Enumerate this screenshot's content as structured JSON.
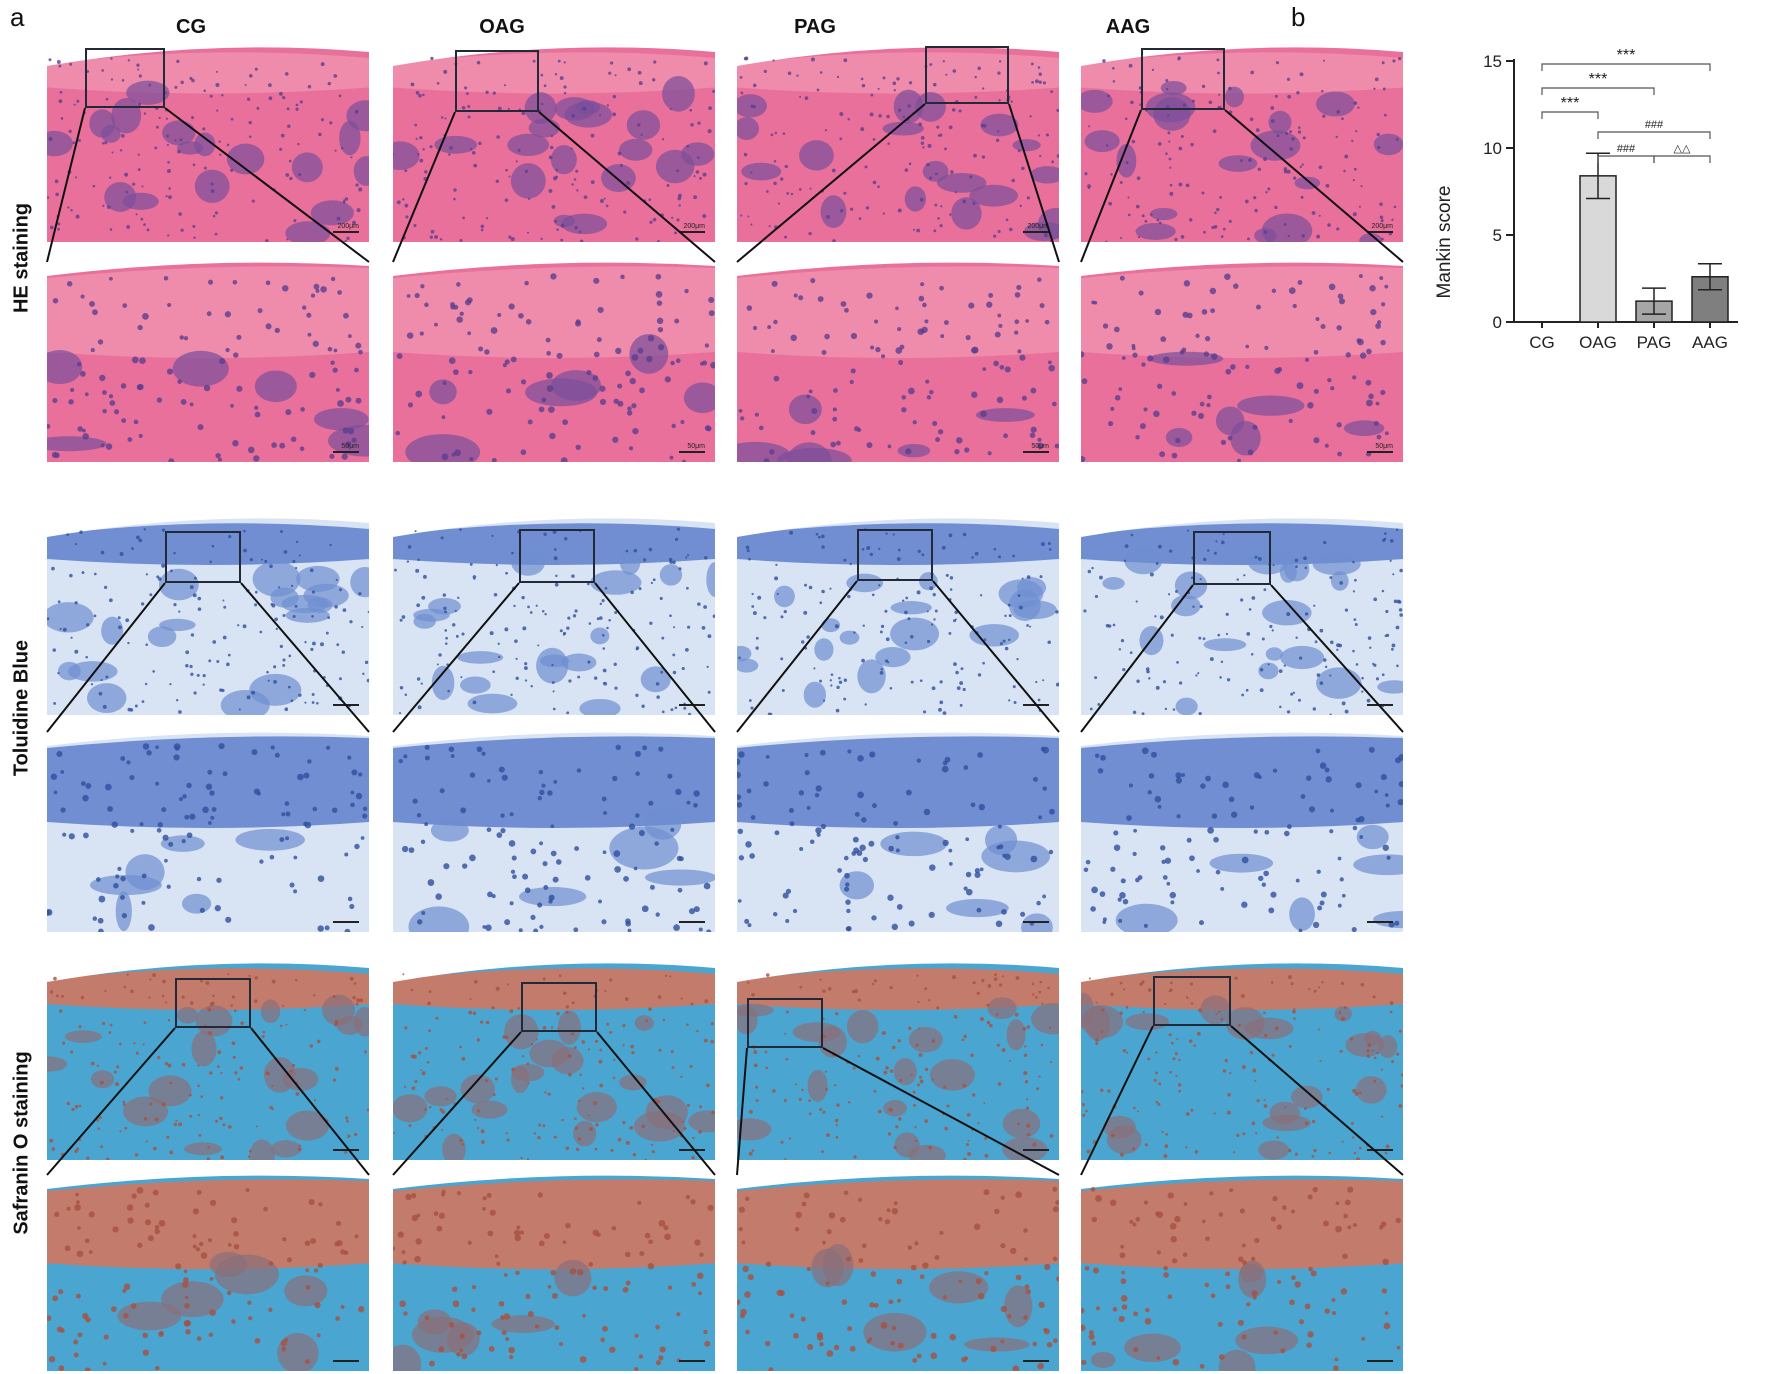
{
  "figure": {
    "panel_a_letter": "a",
    "panel_b_letter": "b",
    "groups": [
      "CG",
      "OAG",
      "PAG",
      "AAG"
    ],
    "rows": [
      {
        "label": "HE staining",
        "stain": "he",
        "scale_low": "200μm",
        "scale_high": "50μm"
      },
      {
        "label": "Toluidine Blue",
        "stain": "tb",
        "scale_low": "",
        "scale_high": ""
      },
      {
        "label": "Safranin O staining",
        "stain": "so",
        "scale_low": "",
        "scale_high": ""
      }
    ],
    "stain_colors": {
      "he": {
        "bg": "#e8709a",
        "top": "#f08fae",
        "cell": "#5b3f8e",
        "marrow": "#7a4f9a"
      },
      "tb": {
        "bg": "#d8e4f4",
        "top": "#5f7fcc",
        "cell": "#2f4f9f",
        "marrow": "#6f8fd0"
      },
      "so": {
        "bg": "#4aa6d0",
        "top": "#d8745a",
        "cell": "#a85040",
        "marrow": "#8a6f7a"
      }
    }
  },
  "chart_data": {
    "type": "bar",
    "categories": [
      "CG",
      "OAG",
      "PAG",
      "AAG"
    ],
    "values": [
      0,
      8.4,
      1.2,
      2.6
    ],
    "errors": [
      0,
      1.3,
      0.75,
      0.75
    ],
    "bar_colors": [
      "#ffffff",
      "#d9d9d9",
      "#a6a6a6",
      "#7f7f7f"
    ],
    "ylabel": "Mankin score",
    "xlabel": "",
    "ylim": [
      0,
      15
    ],
    "yticks": [
      0,
      5,
      10,
      15
    ],
    "significance": [
      {
        "from": 0,
        "to": 3,
        "label": "***",
        "level": 4
      },
      {
        "from": 0,
        "to": 2,
        "label": "***",
        "level": 3
      },
      {
        "from": 0,
        "to": 1,
        "label": "***",
        "level": 2
      },
      {
        "from": 1,
        "to": 3,
        "label": "###",
        "level": 1.4
      },
      {
        "from": 1,
        "to": 2,
        "label": "###",
        "level": 0.4
      },
      {
        "from": 2,
        "to": 3,
        "label": "△△",
        "level": 0.4
      }
    ]
  }
}
